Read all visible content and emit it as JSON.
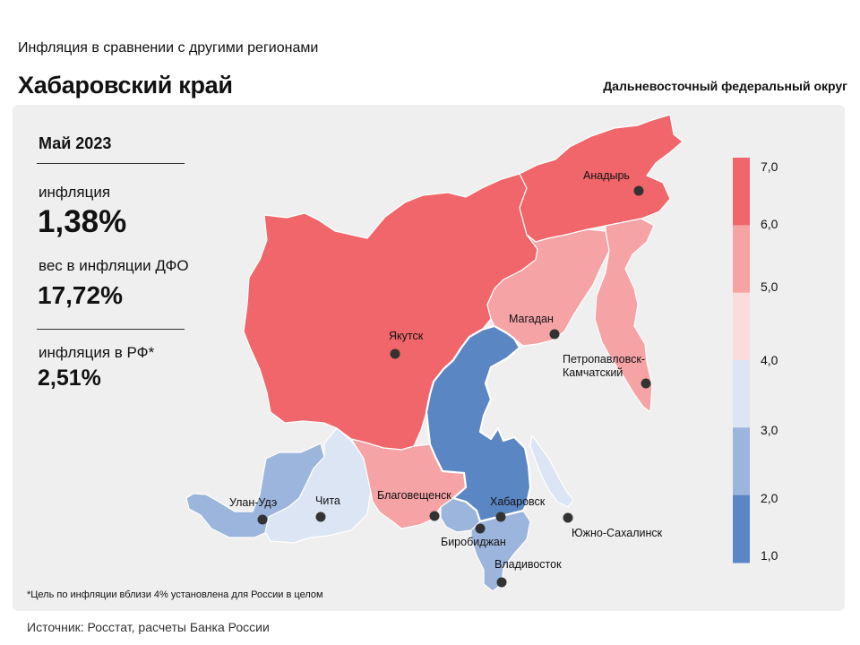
{
  "header": {
    "subtitle": "Инфляция в сравнении с другими регионами",
    "title": "Хабаровский край",
    "district": "Дальневосточный федеральный округ"
  },
  "stats": {
    "period": "Май 2023",
    "inflation_label": "инфляция",
    "inflation_value": "1,38%",
    "weight_label": "вес в инфляции ДФО",
    "weight_value": "17,72%",
    "rf_label": "инфляция в РФ*",
    "rf_value": "2,51%"
  },
  "footnote": "*Цель по инфляции вблизи 4% установлена для России в целом",
  "source": "Источник: Росстат, расчеты  Банка России",
  "legend": {
    "ticks": [
      "7,0",
      "6,0",
      "5,0",
      "4,0",
      "3,0",
      "2,0",
      "1,0"
    ],
    "bands": [
      {
        "from": 6.0,
        "to": 7.0,
        "color": "#f0666a"
      },
      {
        "from": 5.0,
        "to": 6.0,
        "color": "#f5a3a5"
      },
      {
        "from": 4.0,
        "to": 5.0,
        "color": "#fbdcdd"
      },
      {
        "from": 3.0,
        "to": 4.0,
        "color": "#dbe5f4"
      },
      {
        "from": 2.0,
        "to": 3.0,
        "color": "#9cb5dc"
      },
      {
        "from": 1.0,
        "to": 2.0,
        "color": "#5b86c4"
      }
    ]
  },
  "cities": {
    "anadyr": "Анадырь",
    "magadan": "Магадан",
    "yakutsk": "Якутск",
    "petropavlovsk": "Петропавловск-\nКамчатский",
    "ulan_ude": "Улан-Удэ",
    "chita": "Чита",
    "blagoveshchensk": "Благовещенск",
    "khabarovsk": "Хабаровск",
    "birobidzhan": "Биробиджан",
    "yuzhno": "Южно-Сахалинск",
    "vladivostok": "Владивосток"
  },
  "colors": {
    "band_6_7": "#f0666a",
    "band_5_6": "#f5a3a5",
    "band_3_4": "#dbe5f4",
    "band_2_3": "#9cb5dc",
    "band_1_2": "#5b86c4"
  }
}
